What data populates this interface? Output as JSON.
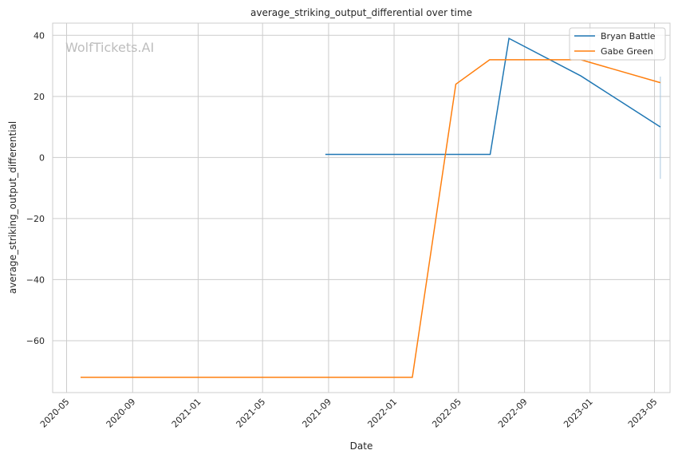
{
  "chart_data": {
    "type": "line",
    "title": "average_striking_output_differential over time",
    "xlabel": "Date",
    "ylabel": "average_striking_output_differential",
    "watermark": "WolfTickets.AI",
    "xlim": [
      "2020-04-05",
      "2023-05-30"
    ],
    "ylim": [
      -77,
      44
    ],
    "x_ticks": [
      "2020-05",
      "2020-09",
      "2021-01",
      "2021-05",
      "2021-09",
      "2022-01",
      "2022-05",
      "2022-09",
      "2023-01",
      "2023-05"
    ],
    "y_ticks": [
      40,
      20,
      0,
      -20,
      -40,
      -60
    ],
    "y_tick_labels": [
      "40",
      "20",
      "0",
      "−20",
      "−40",
      "−60"
    ],
    "grid": true,
    "legend_position": "top-right",
    "series": [
      {
        "name": "Bryan Battle",
        "color": "#1f77b4",
        "x": [
          "2021-08-26",
          "2022-06-29",
          "2022-08-03",
          "2022-12-15",
          "2023-05-12"
        ],
        "y": [
          1,
          1,
          39,
          26.7,
          10
        ]
      },
      {
        "name": "Gabe Green",
        "color": "#ff7f0e",
        "x": [
          "2020-05-27",
          "2022-02-04",
          "2022-04-26",
          "2022-06-28",
          "2022-12-15",
          "2023-05-12"
        ],
        "y": [
          -72,
          -72,
          24,
          32,
          32,
          24.5
        ]
      }
    ],
    "error_bar": {
      "x": "2023-05-12",
      "y_range": [
        -7,
        26.5
      ],
      "color": "#a9c8e0"
    }
  }
}
